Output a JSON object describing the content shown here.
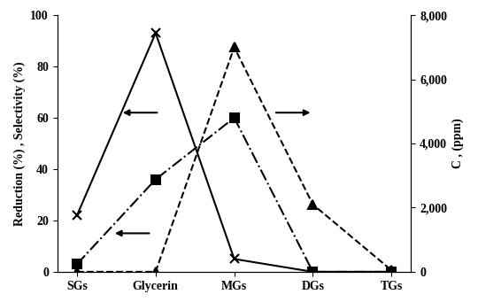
{
  "chart_data": {
    "type": "line",
    "categories": [
      "SGs",
      "Glycerin",
      "MGs",
      "DGs",
      "TGs"
    ],
    "ylabel": "Reduction (%) , Selectivity (%)",
    "y2label": "C , (ppm)",
    "ylim": [
      0,
      100
    ],
    "yticks": [
      0,
      20,
      40,
      60,
      80,
      100
    ],
    "y2lim": [
      0,
      8000
    ],
    "y2ticks": [
      0,
      {
        "value": 2000,
        "label": "2,000"
      },
      {
        "value": 4000,
        "label": "4,000"
      },
      {
        "value": 6000,
        "label": "6,000"
      },
      {
        "value": 8000,
        "label": "8,000"
      }
    ],
    "series": [
      {
        "color": "#000000",
        "marker": "x",
        "line_style": "solid",
        "axis": "y",
        "values": [
          22,
          93,
          5,
          0,
          0
        ]
      },
      {
        "color": "#000000",
        "marker": "square",
        "line_style": "dashdot",
        "axis": "y",
        "values": [
          3,
          36,
          60,
          0,
          0
        ]
      },
      {
        "color": "#000000",
        "marker": "triangle",
        "line_style": "dashed",
        "axis": "y2",
        "values": [
          0,
          0,
          7000,
          2100,
          50
        ]
      }
    ]
  }
}
